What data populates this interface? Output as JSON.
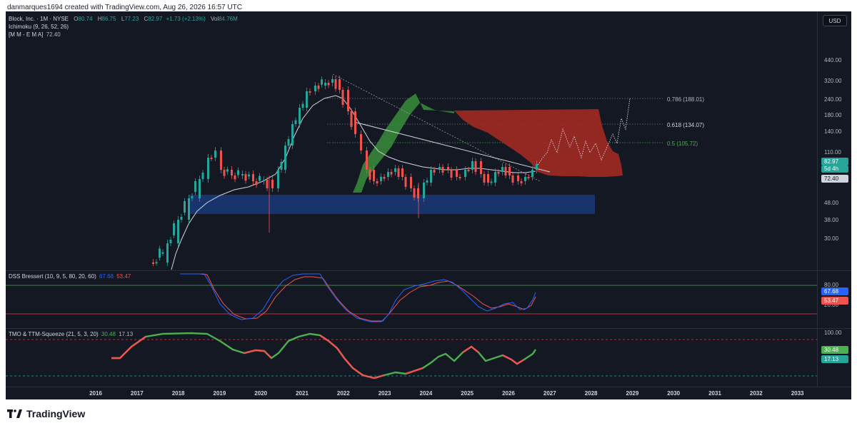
{
  "credit": "danmarques1694 created with TradingView.com, Aug 26, 2026 16:57 UTC",
  "symbol": {
    "name": "Block, Inc. · 1M · NYSE",
    "open_key": "O",
    "open": "80.74",
    "high_key": "H",
    "high": "86.75",
    "low_key": "L",
    "low": "77.23",
    "close_key": "C",
    "close": "82.97",
    "change": "+1.73 (+2.13%)",
    "vol_key": "Vol",
    "vol": "84.76M"
  },
  "indicators": {
    "ichimoku": "Ichimoku (9, 26, 52, 26)",
    "ema_label": "[M M - E M A]",
    "ema_value": "72.40",
    "dss_label": "DSS Bressert (10, 9, 5, 80, 20, 60)",
    "dss_v1": "67.68",
    "dss_v2": "53.47",
    "tmo_label": "TMO & TTM-Squeeze (21, 5, 3, 20)",
    "tmo_v1": "30.48",
    "tmo_v2": "17.13"
  },
  "currency": "USD",
  "price_axis": [
    "440.00",
    "320.00",
    "240.00",
    "180.00",
    "140.00",
    "110.00",
    "48.00",
    "38.00",
    "30.00"
  ],
  "fib_levels": [
    {
      "label": "0.786 (188.01)",
      "color": "#b2b5be"
    },
    {
      "label": "0.618 (134.07)",
      "color": "#d1d4dc"
    },
    {
      "label": "0.5 (105.72)",
      "color": "#4caf50"
    }
  ],
  "price_tags": {
    "last": "82.97",
    "countdown": "5d 4h",
    "ema": "72.40"
  },
  "dss_axis": [
    "80.00",
    "20.00"
  ],
  "dss_tags": [
    "67.68",
    "53.47"
  ],
  "tmo_axis": [
    "100.00"
  ],
  "tmo_tags": [
    "30.48",
    "17.13"
  ],
  "years": [
    "2016",
    "2017",
    "2018",
    "2019",
    "2020",
    "2021",
    "2022",
    "2023",
    "2024",
    "2025",
    "2026",
    "2027",
    "2028",
    "2029",
    "2030",
    "2031",
    "2032",
    "2033"
  ],
  "colors": {
    "up": "#26a69a",
    "down": "#ef5350",
    "bg": "#141823",
    "cloud_green": "#388e3c",
    "cloud_red": "#a52a22",
    "support": "#1a3a7a"
  },
  "logo": "TradingView"
}
